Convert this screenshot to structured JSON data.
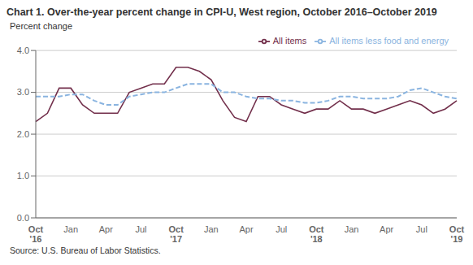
{
  "chart_data": {
    "type": "line",
    "title": "Chart 1. Over-the-year percent change in CPI-U, West region, October 2016–October 2019",
    "y_label": "Percent change",
    "annotations": [
      "Source: U.S. Bureau of Labor Statistics."
    ],
    "categories": [
      "Oct\n'16",
      null,
      null,
      "Jan",
      null,
      null,
      "Apr",
      null,
      null,
      "Jul",
      null,
      null,
      "Oct\n'17",
      null,
      null,
      "Jan",
      null,
      null,
      "Apr",
      null,
      null,
      "Jul",
      null,
      null,
      "Oct\n'18",
      null,
      null,
      "Jan",
      null,
      null,
      "Apr",
      null,
      null,
      "Jul",
      null,
      null,
      "Oct\n'19"
    ],
    "series": [
      {
        "name": "All items",
        "color": "#722f4b",
        "line_style": "solid",
        "values": [
          2.3,
          2.5,
          3.1,
          3.1,
          2.7,
          2.5,
          2.5,
          2.5,
          3.0,
          3.1,
          3.2,
          3.2,
          3.6,
          3.6,
          3.5,
          3.3,
          2.8,
          2.4,
          2.3,
          2.9,
          2.9,
          2.7,
          2.6,
          2.5,
          2.6,
          2.6,
          2.8,
          2.6,
          2.6,
          2.5,
          2.6,
          2.7,
          2.8,
          2.7,
          2.5,
          2.6,
          2.8
        ]
      },
      {
        "name": "All items less food and energy",
        "color": "#8ab4e0",
        "line_style": "dashed",
        "values": [
          2.9,
          2.9,
          2.9,
          2.95,
          2.95,
          2.8,
          2.7,
          2.7,
          2.9,
          2.95,
          3.0,
          3.0,
          3.1,
          3.2,
          3.2,
          3.2,
          3.0,
          3.0,
          2.9,
          2.85,
          2.85,
          2.8,
          2.8,
          2.75,
          2.75,
          2.8,
          2.9,
          2.9,
          2.85,
          2.85,
          2.85,
          2.9,
          3.05,
          3.1,
          3.0,
          2.9,
          2.85
        ]
      }
    ],
    "ylim": [
      0.0,
      4.0
    ],
    "yticks": [
      {
        "value": 0,
        "label": "0.0"
      },
      {
        "value": 1,
        "label": "1.0"
      },
      {
        "value": 2,
        "label": "2.0"
      },
      {
        "value": 3,
        "label": "3.0"
      },
      {
        "value": 4,
        "label": "4.0"
      }
    ],
    "grid": "y",
    "legend": "upper right"
  }
}
